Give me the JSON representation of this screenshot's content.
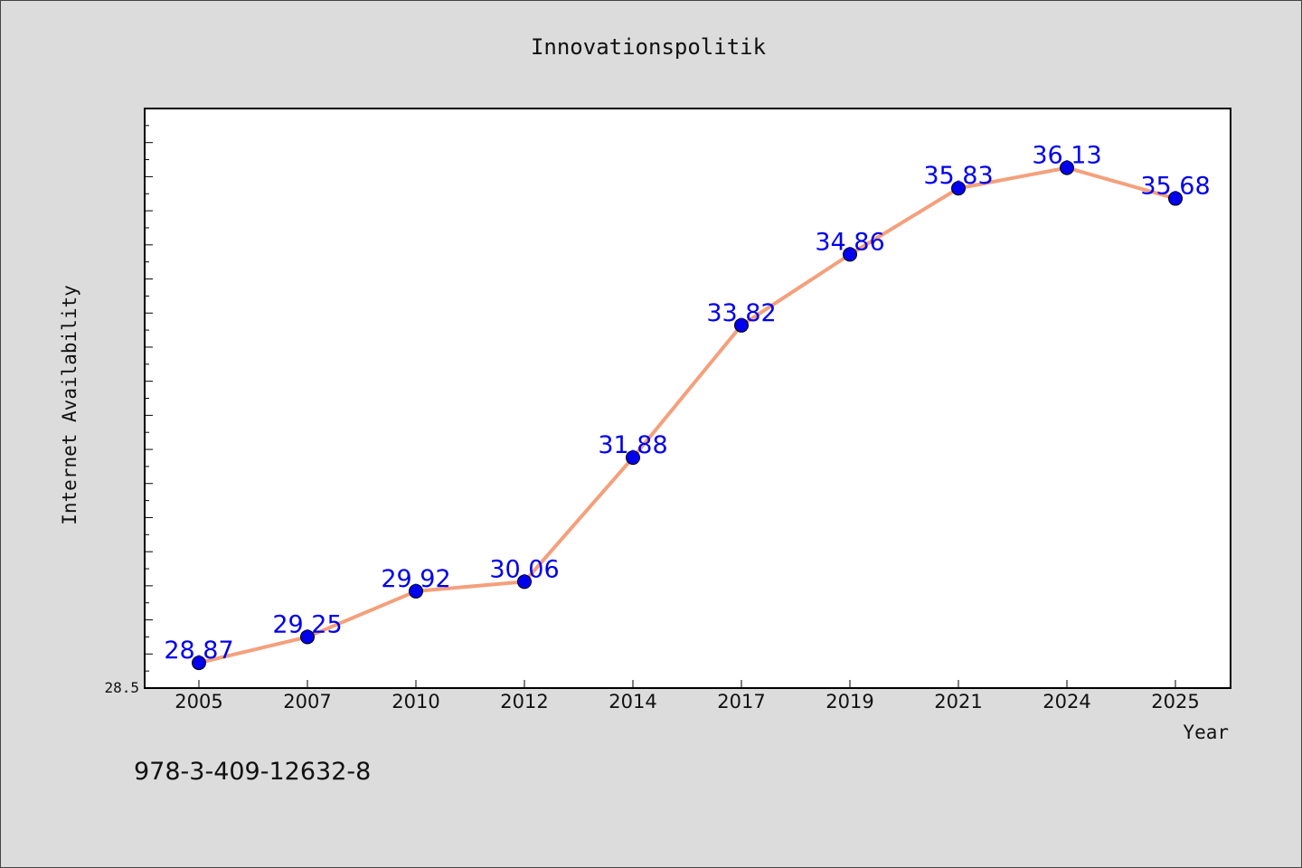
{
  "chart_data": {
    "type": "line",
    "title": "Innovationspolitik",
    "xlabel": "Year",
    "ylabel": "Internet Availability",
    "categories": [
      "2005",
      "2007",
      "2010",
      "2012",
      "2014",
      "2017",
      "2019",
      "2021",
      "2024",
      "2025"
    ],
    "series": [
      {
        "values": [
          28.87,
          29.25,
          29.92,
          30.06,
          31.88,
          33.82,
          34.86,
          35.83,
          36.13,
          35.68
        ],
        "labels": [
          "28.87",
          "29.25",
          "29.92",
          "30.06",
          "31.88",
          "33.82",
          "34.86",
          "35.83",
          "36.13",
          "35.68"
        ]
      }
    ],
    "ylim": [
      28.5,
      37.0
    ],
    "ytick_labels": [
      "28.5"
    ],
    "grid": false,
    "legend": "none",
    "colors": {
      "line": "#f4a07c",
      "marker": "#0000ee",
      "data_label": "#0000ee",
      "plot_background": "#ffffff",
      "figure_background": "#dcdcdc"
    }
  },
  "footer": {
    "isbn": "978-3-409-12632-8"
  }
}
